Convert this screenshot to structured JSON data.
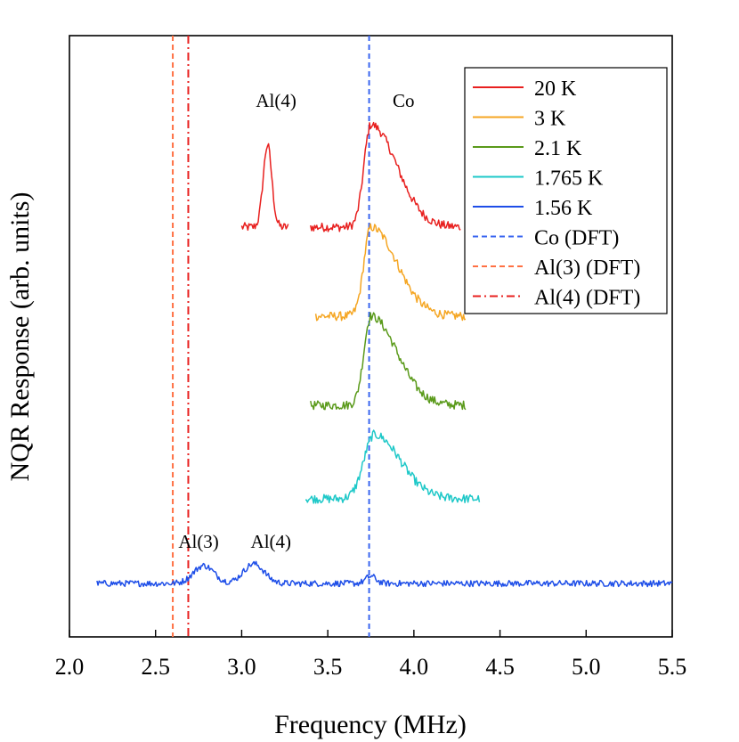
{
  "chart_data": {
    "type": "line",
    "xlabel": "Frequency (MHz)",
    "ylabel": "NQR Response (arb. units)",
    "xlim": [
      2.0,
      5.5
    ],
    "xticks": [
      "2.0",
      "2.5",
      "3.0",
      "3.5",
      "4.0",
      "4.5",
      "5.0",
      "5.5"
    ],
    "grid": false,
    "legend_position": "top-right",
    "series": [
      {
        "name": "20 K",
        "color": "#e8201f",
        "offset": 4.0,
        "noise": 0.05,
        "segments": [
          [
            3.0,
            3.27
          ],
          [
            3.4,
            4.27
          ]
        ],
        "peaks": [
          {
            "center": 3.15,
            "amplitude": 0.92,
            "width_low": 0.025,
            "width_high": 0.025
          },
          {
            "center": 3.75,
            "amplitude": 1.15,
            "width_low": 0.04,
            "width_high": 0.15
          }
        ]
      },
      {
        "name": "3 K",
        "color": "#f5a623",
        "offset": 3.0,
        "noise": 0.05,
        "segments": [
          [
            3.43,
            4.3
          ]
        ],
        "peaks": [
          {
            "center": 3.75,
            "amplitude": 1.0,
            "width_low": 0.04,
            "width_high": 0.15
          }
        ]
      },
      {
        "name": "2.1 K",
        "color": "#5a9a1a",
        "offset": 2.0,
        "noise": 0.05,
        "segments": [
          [
            3.4,
            4.3
          ]
        ],
        "peaks": [
          {
            "center": 3.75,
            "amplitude": 1.0,
            "width_low": 0.04,
            "width_high": 0.15
          }
        ]
      },
      {
        "name": "1.765 K",
        "color": "#1ec8c8",
        "offset": 0.95,
        "noise": 0.05,
        "segments": [
          [
            3.37,
            4.38
          ]
        ],
        "peaks": [
          {
            "center": 3.77,
            "amplitude": 0.72,
            "width_low": 0.06,
            "width_high": 0.15
          }
        ]
      },
      {
        "name": "1.56 K",
        "color": "#1e4ee8",
        "offset": 0.0,
        "noise": 0.035,
        "segments": [
          [
            2.16,
            5.5
          ]
        ],
        "peaks": [
          {
            "center": 2.78,
            "amplitude": 0.2,
            "width_low": 0.06,
            "width_high": 0.06
          },
          {
            "center": 3.07,
            "amplitude": 0.22,
            "width_low": 0.06,
            "width_high": 0.06
          },
          {
            "center": 3.75,
            "amplitude": 0.08,
            "width_low": 0.03,
            "width_high": 0.03
          }
        ]
      }
    ],
    "reference_lines": [
      {
        "name": "Co (DFT)",
        "x": 3.74,
        "color": "#3a66f0",
        "style": "dashed"
      },
      {
        "name": "Al(3) (DFT)",
        "x": 2.6,
        "color": "#ff7043",
        "style": "dashed"
      },
      {
        "name": "Al(4) (DFT)",
        "x": 2.69,
        "color": "#e8201f",
        "style": "dashdot"
      }
    ],
    "annotations": [
      {
        "text": "Al(4)",
        "x": 3.2,
        "y": 5.35
      },
      {
        "text": "Co",
        "x": 3.94,
        "y": 5.35
      },
      {
        "text": "Al(3)",
        "x": 2.75,
        "y": 0.4
      },
      {
        "text": "Al(4)",
        "x": 3.17,
        "y": 0.4
      }
    ]
  }
}
